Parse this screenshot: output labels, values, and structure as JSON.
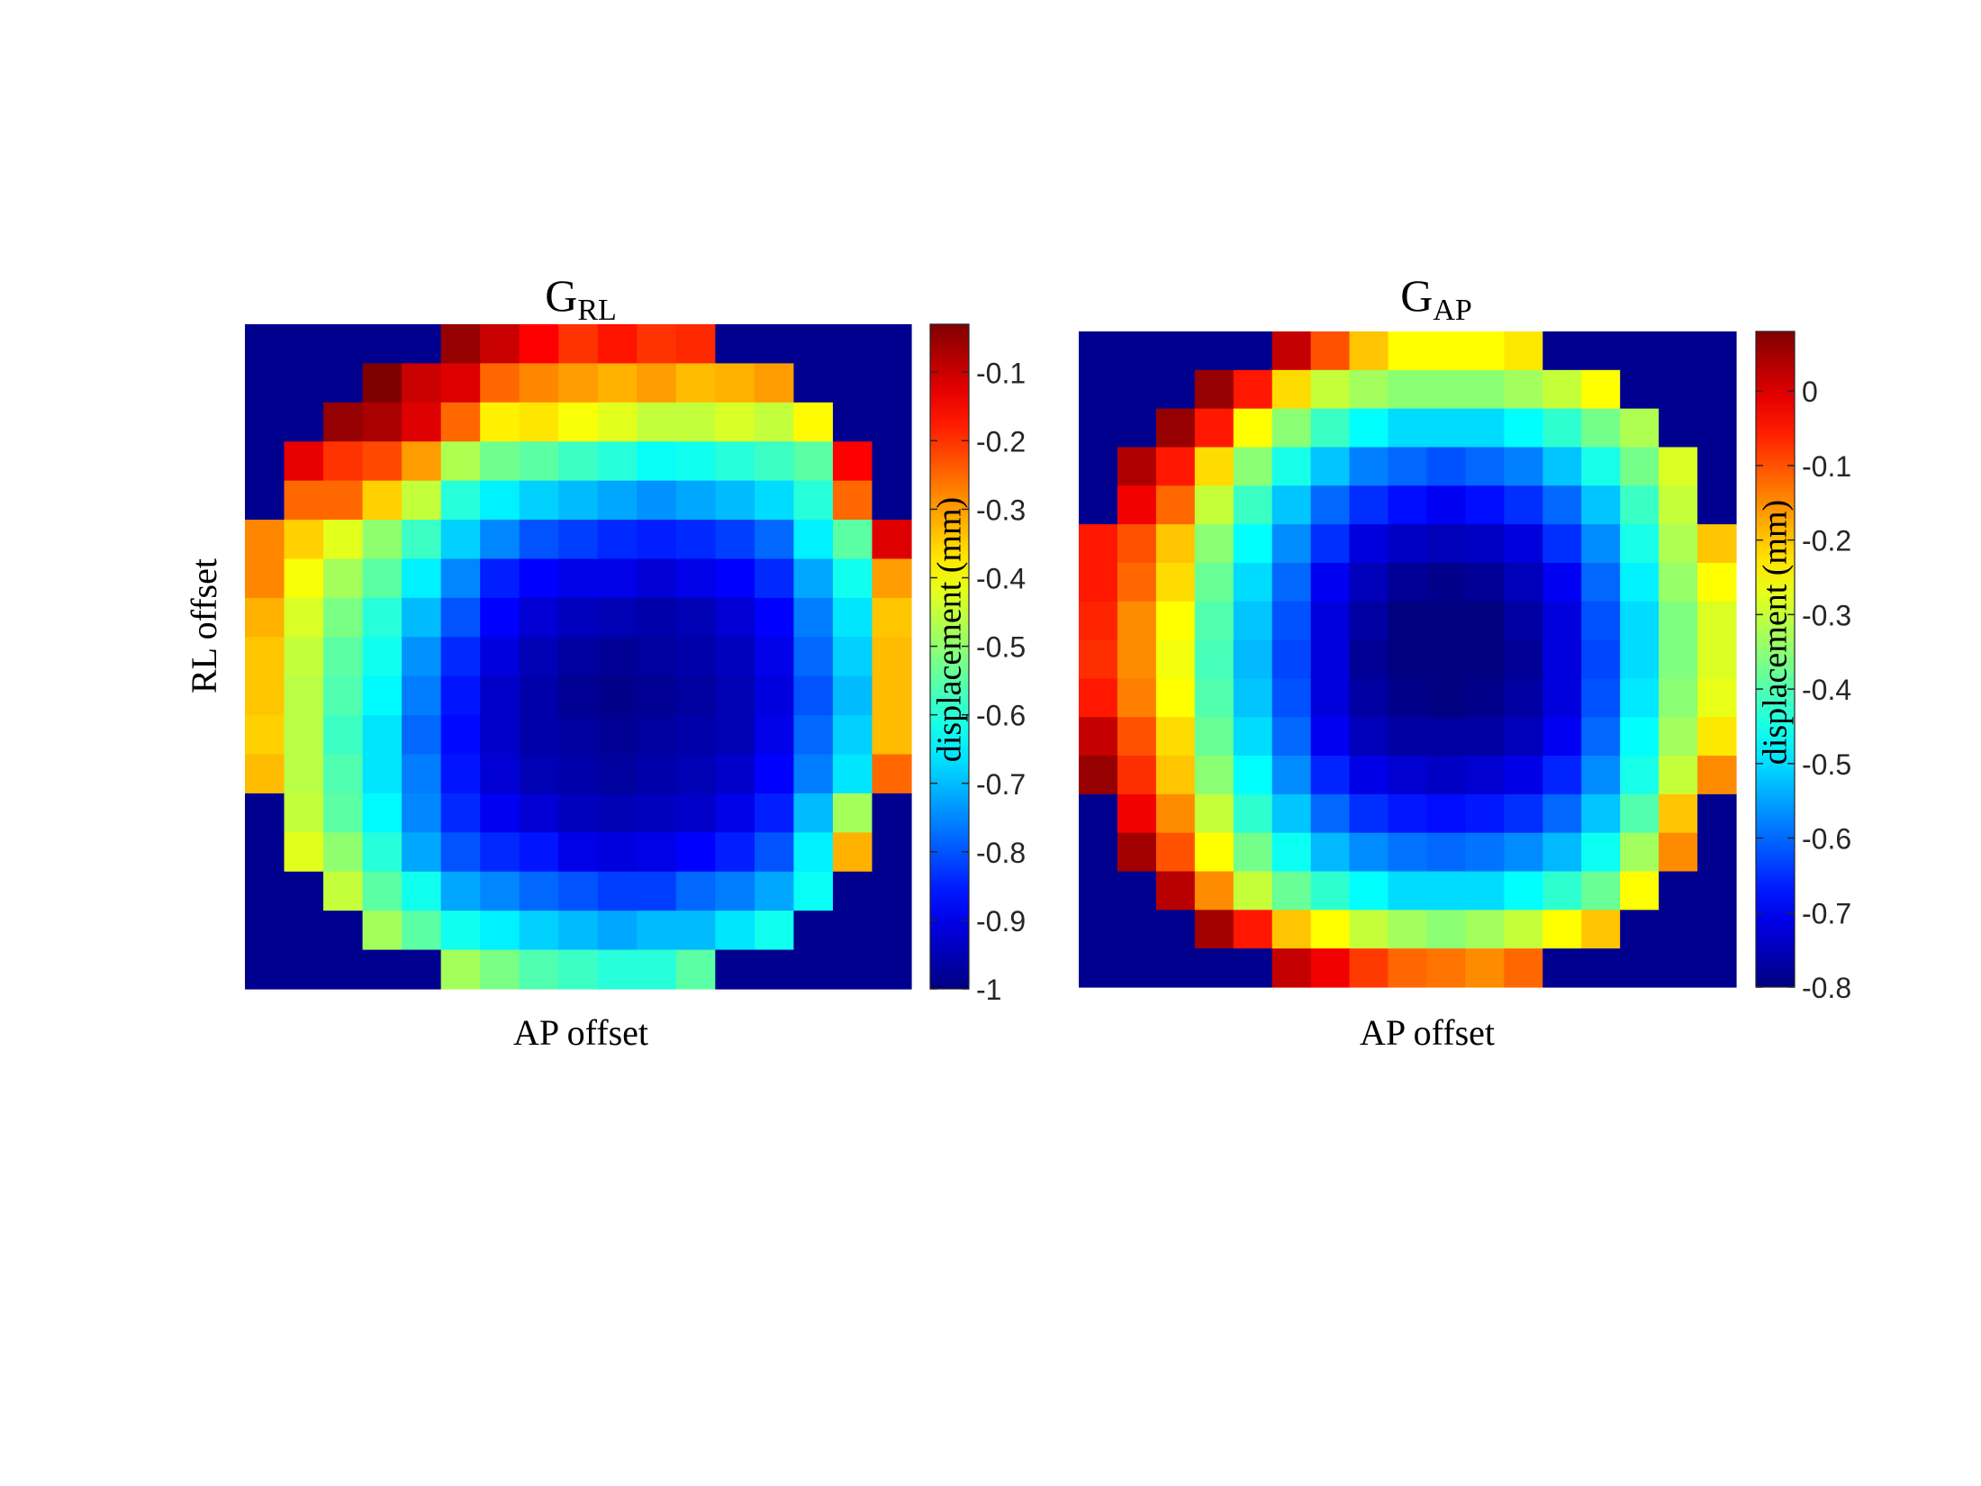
{
  "chart_data": [
    {
      "type": "heatmap",
      "title_main": "G",
      "title_sub": "RL",
      "xlabel": "AP offset",
      "ylabel": "RL offset",
      "colorbar_label": "displacement (mm)",
      "colorbar_ticks": [
        "-0.1",
        "-0.2",
        "-0.3",
        "-0.4",
        "-0.5",
        "-0.6",
        "-0.7",
        "-0.8",
        "-0.9",
        "-1"
      ],
      "clim": [
        -1.0,
        -0.03
      ],
      "colormap": "jet",
      "masked_value_color": "#00008f",
      "grid_size": [
        17,
        17
      ],
      "values": [
        [
          null,
          null,
          null,
          null,
          null,
          -0.05,
          -0.1,
          -0.15,
          -0.2,
          -0.17,
          -0.2,
          -0.19,
          null,
          null,
          null,
          null,
          null
        ],
        [
          null,
          null,
          null,
          -0.03,
          -0.1,
          -0.12,
          -0.25,
          -0.28,
          -0.3,
          -0.32,
          -0.3,
          -0.33,
          -0.32,
          -0.3,
          null,
          null,
          null
        ],
        [
          null,
          null,
          -0.05,
          -0.07,
          -0.12,
          -0.25,
          -0.38,
          -0.37,
          -0.4,
          -0.42,
          -0.45,
          -0.45,
          -0.43,
          -0.45,
          -0.39,
          null,
          null
        ],
        [
          null,
          -0.13,
          -0.2,
          -0.22,
          -0.3,
          -0.47,
          -0.53,
          -0.55,
          -0.58,
          -0.6,
          -0.63,
          -0.62,
          -0.6,
          -0.58,
          -0.55,
          -0.15,
          null
        ],
        [
          null,
          -0.25,
          -0.25,
          -0.35,
          -0.45,
          -0.6,
          -0.65,
          -0.68,
          -0.7,
          -0.72,
          -0.74,
          -0.72,
          -0.7,
          -0.67,
          -0.6,
          -0.25,
          null
        ],
        [
          -0.28,
          -0.35,
          -0.42,
          -0.5,
          -0.58,
          -0.68,
          -0.75,
          -0.8,
          -0.82,
          -0.84,
          -0.85,
          -0.84,
          -0.82,
          -0.78,
          -0.65,
          -0.55,
          -0.12
        ],
        [
          -0.28,
          -0.4,
          -0.48,
          -0.55,
          -0.65,
          -0.75,
          -0.85,
          -0.88,
          -0.9,
          -0.9,
          -0.92,
          -0.9,
          -0.88,
          -0.84,
          -0.72,
          -0.62,
          -0.3
        ],
        [
          -0.32,
          -0.43,
          -0.52,
          -0.6,
          -0.7,
          -0.8,
          -0.88,
          -0.92,
          -0.94,
          -0.95,
          -0.96,
          -0.95,
          -0.92,
          -0.88,
          -0.76,
          -0.66,
          -0.34
        ],
        [
          -0.34,
          -0.45,
          -0.55,
          -0.62,
          -0.74,
          -0.84,
          -0.91,
          -0.95,
          -0.97,
          -0.98,
          -0.97,
          -0.96,
          -0.94,
          -0.9,
          -0.78,
          -0.68,
          -0.33
        ],
        [
          -0.34,
          -0.46,
          -0.56,
          -0.64,
          -0.76,
          -0.86,
          -0.93,
          -0.96,
          -0.98,
          -0.99,
          -0.98,
          -0.97,
          -0.95,
          -0.91,
          -0.8,
          -0.7,
          -0.33
        ],
        [
          -0.35,
          -0.46,
          -0.58,
          -0.66,
          -0.78,
          -0.87,
          -0.93,
          -0.96,
          -0.97,
          -0.98,
          -0.97,
          -0.96,
          -0.95,
          -0.9,
          -0.78,
          -0.68,
          -0.33
        ],
        [
          -0.33,
          -0.46,
          -0.56,
          -0.66,
          -0.76,
          -0.86,
          -0.92,
          -0.95,
          -0.96,
          -0.97,
          -0.96,
          -0.95,
          -0.93,
          -0.88,
          -0.76,
          -0.66,
          -0.25
        ],
        [
          null,
          -0.45,
          -0.55,
          -0.64,
          -0.75,
          -0.84,
          -0.89,
          -0.92,
          -0.94,
          -0.95,
          -0.94,
          -0.93,
          -0.9,
          -0.85,
          -0.7,
          -0.48,
          null
        ],
        [
          null,
          -0.42,
          -0.5,
          -0.6,
          -0.72,
          -0.8,
          -0.84,
          -0.86,
          -0.9,
          -0.91,
          -0.9,
          -0.88,
          -0.85,
          -0.8,
          -0.65,
          -0.32,
          null
        ],
        [
          null,
          null,
          -0.45,
          -0.55,
          -0.62,
          -0.72,
          -0.75,
          -0.78,
          -0.8,
          -0.82,
          -0.82,
          -0.78,
          -0.76,
          -0.72,
          -0.63,
          null,
          null
        ],
        [
          null,
          null,
          null,
          -0.48,
          -0.55,
          -0.62,
          -0.65,
          -0.68,
          -0.7,
          -0.72,
          -0.7,
          -0.7,
          -0.66,
          -0.62,
          null,
          null,
          null
        ],
        [
          null,
          null,
          null,
          null,
          null,
          -0.48,
          -0.52,
          -0.56,
          -0.58,
          -0.6,
          -0.6,
          -0.55,
          null,
          null,
          null,
          null,
          null
        ]
      ]
    },
    {
      "type": "heatmap",
      "title_main": "G",
      "title_sub": "AP",
      "xlabel": "AP offset",
      "ylabel": "",
      "colorbar_label": "displacement (mm)",
      "colorbar_ticks": [
        "0",
        "-0.1",
        "-0.2",
        "-0.3",
        "-0.4",
        "-0.5",
        "-0.6",
        "-0.7",
        "-0.8"
      ],
      "clim": [
        -0.8,
        0.08
      ],
      "colormap": "jet",
      "masked_value_color": "#00008f",
      "grid_size": [
        17,
        17
      ],
      "values": [
        [
          null,
          null,
          null,
          null,
          null,
          0.02,
          -0.1,
          -0.2,
          -0.25,
          -0.25,
          -0.25,
          -0.23,
          null,
          null,
          null,
          null,
          null
        ],
        [
          null,
          null,
          null,
          0.06,
          -0.05,
          -0.22,
          -0.3,
          -0.33,
          -0.35,
          -0.35,
          -0.35,
          -0.33,
          -0.3,
          -0.25,
          null,
          null,
          null
        ],
        [
          null,
          null,
          0.06,
          -0.05,
          -0.25,
          -0.35,
          -0.42,
          -0.47,
          -0.5,
          -0.5,
          -0.5,
          -0.47,
          -0.43,
          -0.37,
          -0.32,
          null,
          null
        ],
        [
          null,
          0.04,
          -0.05,
          -0.22,
          -0.35,
          -0.45,
          -0.52,
          -0.58,
          -0.6,
          -0.62,
          -0.6,
          -0.58,
          -0.52,
          -0.45,
          -0.37,
          -0.28,
          null
        ],
        [
          null,
          -0.02,
          -0.12,
          -0.3,
          -0.42,
          -0.52,
          -0.6,
          -0.65,
          -0.68,
          -0.7,
          -0.68,
          -0.65,
          -0.6,
          -0.52,
          -0.42,
          -0.3,
          null
        ],
        [
          -0.05,
          -0.1,
          -0.2,
          -0.35,
          -0.47,
          -0.57,
          -0.65,
          -0.72,
          -0.74,
          -0.75,
          -0.74,
          -0.72,
          -0.65,
          -0.57,
          -0.45,
          -0.32,
          -0.2
        ],
        [
          -0.05,
          -0.12,
          -0.22,
          -0.38,
          -0.5,
          -0.6,
          -0.7,
          -0.75,
          -0.78,
          -0.79,
          -0.78,
          -0.75,
          -0.7,
          -0.6,
          -0.48,
          -0.34,
          -0.25
        ],
        [
          -0.06,
          -0.15,
          -0.25,
          -0.4,
          -0.52,
          -0.62,
          -0.72,
          -0.77,
          -0.8,
          -0.8,
          -0.8,
          -0.77,
          -0.72,
          -0.62,
          -0.5,
          -0.36,
          -0.28
        ],
        [
          -0.07,
          -0.15,
          -0.26,
          -0.41,
          -0.53,
          -0.63,
          -0.72,
          -0.78,
          -0.8,
          -0.81,
          -0.8,
          -0.78,
          -0.72,
          -0.63,
          -0.5,
          -0.36,
          -0.28
        ],
        [
          -0.05,
          -0.14,
          -0.25,
          -0.4,
          -0.52,
          -0.62,
          -0.72,
          -0.77,
          -0.79,
          -0.8,
          -0.79,
          -0.77,
          -0.72,
          -0.62,
          -0.49,
          -0.35,
          -0.27
        ],
        [
          0.02,
          -0.1,
          -0.22,
          -0.38,
          -0.5,
          -0.6,
          -0.7,
          -0.75,
          -0.77,
          -0.77,
          -0.77,
          -0.75,
          -0.7,
          -0.6,
          -0.47,
          -0.33,
          -0.23
        ],
        [
          0.06,
          -0.07,
          -0.2,
          -0.35,
          -0.47,
          -0.57,
          -0.66,
          -0.71,
          -0.73,
          -0.74,
          -0.73,
          -0.71,
          -0.66,
          -0.57,
          -0.45,
          -0.3,
          -0.15
        ],
        [
          null,
          -0.02,
          -0.15,
          -0.3,
          -0.43,
          -0.52,
          -0.6,
          -0.65,
          -0.67,
          -0.68,
          -0.67,
          -0.65,
          -0.6,
          -0.52,
          -0.4,
          -0.2,
          null
        ],
        [
          null,
          0.05,
          -0.1,
          -0.25,
          -0.37,
          -0.46,
          -0.53,
          -0.57,
          -0.59,
          -0.6,
          -0.59,
          -0.57,
          -0.53,
          -0.46,
          -0.33,
          -0.15,
          null
        ],
        [
          null,
          null,
          0.03,
          -0.15,
          -0.3,
          -0.38,
          -0.43,
          -0.47,
          -0.5,
          -0.5,
          -0.5,
          -0.47,
          -0.43,
          -0.38,
          -0.25,
          null,
          null
        ],
        [
          null,
          null,
          null,
          0.05,
          -0.05,
          -0.2,
          -0.25,
          -0.3,
          -0.33,
          -0.35,
          -0.33,
          -0.3,
          -0.25,
          -0.2,
          null,
          null,
          null
        ],
        [
          null,
          null,
          null,
          null,
          null,
          0.02,
          -0.02,
          -0.08,
          -0.12,
          -0.13,
          -0.15,
          -0.12,
          null,
          null,
          null,
          null,
          null
        ]
      ]
    }
  ]
}
